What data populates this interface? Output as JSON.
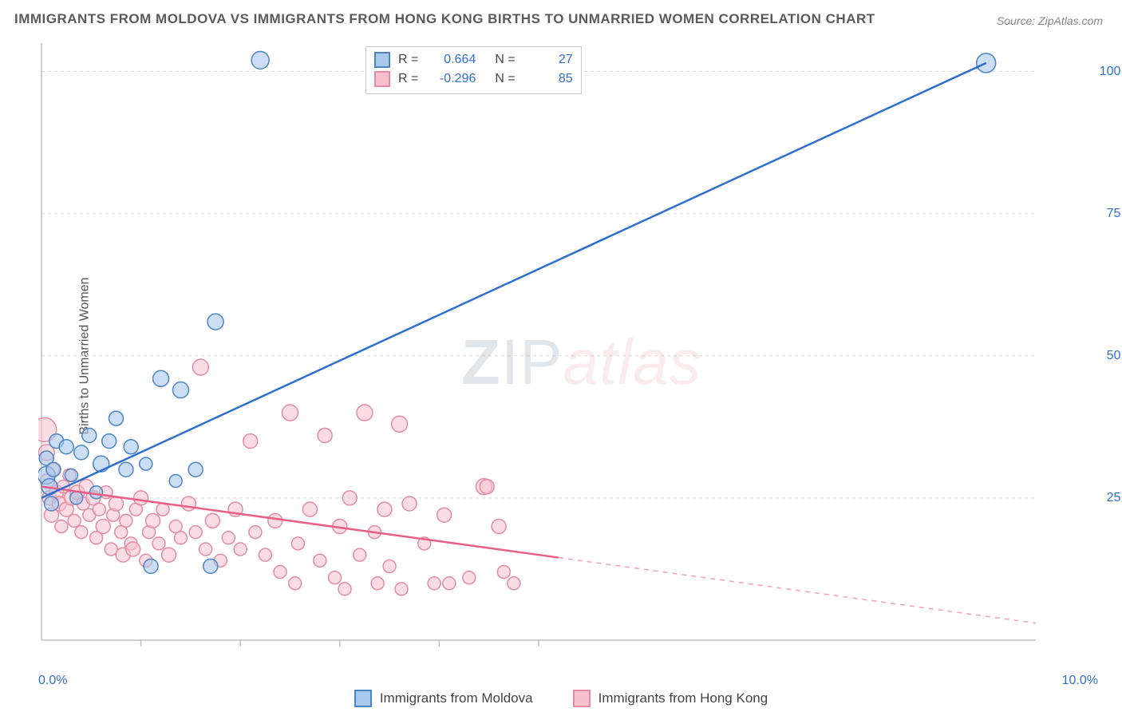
{
  "title": "IMMIGRANTS FROM MOLDOVA VS IMMIGRANTS FROM HONG KONG BIRTHS TO UNMARRIED WOMEN CORRELATION CHART",
  "source": "Source: ZipAtlas.com",
  "ylabel": "Births to Unmarried Women",
  "watermark_parts": {
    "z": "Z",
    "ip": "IP",
    "at": "atlas"
  },
  "colors": {
    "blue_fill": "#a8c8ec",
    "blue_stroke": "#4d84c4",
    "blue_line": "#2f6fd0",
    "pink_fill": "#f6c1cd",
    "pink_stroke": "#e48ba1",
    "pink_line": "#ea5f87",
    "grid": "#d9d9d9",
    "axis": "#bfbfbf",
    "tick_blue": "#2f6fd0",
    "text": "#555555"
  },
  "axes": {
    "x_min": 0.0,
    "x_max": 10.0,
    "y_min": 0.0,
    "y_max": 105.0,
    "y_ticks": [
      25.0,
      50.0,
      75.0,
      100.0
    ],
    "y_tick_labels": [
      "25.0%",
      "50.0%",
      "75.0%",
      "100.0%"
    ],
    "x_tick_min_label": "0.0%",
    "x_tick_max_label": "10.0%",
    "x_minor_ticks": [
      1.0,
      2.0,
      3.0,
      4.0,
      5.0
    ]
  },
  "stats": {
    "blue": {
      "R": "0.664",
      "N": "27"
    },
    "pink": {
      "R": "-0.296",
      "N": "85"
    }
  },
  "legend": {
    "blue": "Immigrants from Moldova",
    "pink": "Immigrants from Hong Kong"
  },
  "trend_lines": {
    "blue": {
      "x1": 0.0,
      "y1": 25.0,
      "x2": 9.5,
      "y2": 101.5,
      "solid_until_x": 9.5
    },
    "pink": {
      "x1": 0.0,
      "y1": 27.0,
      "x2": 10.0,
      "y2": 3.0,
      "solid_until_x": 5.2
    }
  },
  "series": {
    "blue": [
      {
        "x": 0.05,
        "y": 29,
        "r": 11
      },
      {
        "x": 0.05,
        "y": 32,
        "r": 9
      },
      {
        "x": 0.08,
        "y": 27,
        "r": 10
      },
      {
        "x": 0.1,
        "y": 24,
        "r": 9
      },
      {
        "x": 0.12,
        "y": 30,
        "r": 9
      },
      {
        "x": 0.15,
        "y": 35,
        "r": 9
      },
      {
        "x": 0.25,
        "y": 34,
        "r": 9
      },
      {
        "x": 0.3,
        "y": 29,
        "r": 8
      },
      {
        "x": 0.35,
        "y": 25,
        "r": 8
      },
      {
        "x": 0.4,
        "y": 33,
        "r": 9
      },
      {
        "x": 0.48,
        "y": 36,
        "r": 9
      },
      {
        "x": 0.55,
        "y": 26,
        "r": 8
      },
      {
        "x": 0.6,
        "y": 31,
        "r": 10
      },
      {
        "x": 0.68,
        "y": 35,
        "r": 9
      },
      {
        "x": 0.75,
        "y": 39,
        "r": 9
      },
      {
        "x": 0.85,
        "y": 30,
        "r": 9
      },
      {
        "x": 0.9,
        "y": 34,
        "r": 9
      },
      {
        "x": 1.05,
        "y": 31,
        "r": 8
      },
      {
        "x": 1.1,
        "y": 13,
        "r": 9
      },
      {
        "x": 1.2,
        "y": 46,
        "r": 10
      },
      {
        "x": 1.35,
        "y": 28,
        "r": 8
      },
      {
        "x": 1.4,
        "y": 44,
        "r": 10
      },
      {
        "x": 1.55,
        "y": 30,
        "r": 9
      },
      {
        "x": 1.7,
        "y": 13,
        "r": 9
      },
      {
        "x": 1.75,
        "y": 56,
        "r": 10
      },
      {
        "x": 2.2,
        "y": 102,
        "r": 11
      },
      {
        "x": 9.5,
        "y": 101.5,
        "r": 12
      }
    ],
    "pink": [
      {
        "x": 0.03,
        "y": 37,
        "r": 15
      },
      {
        "x": 0.05,
        "y": 33,
        "r": 10
      },
      {
        "x": 0.06,
        "y": 28,
        "r": 9
      },
      {
        "x": 0.08,
        "y": 25,
        "r": 9
      },
      {
        "x": 0.1,
        "y": 22,
        "r": 9
      },
      {
        "x": 0.12,
        "y": 30,
        "r": 8
      },
      {
        "x": 0.15,
        "y": 26,
        "r": 9
      },
      {
        "x": 0.18,
        "y": 24,
        "r": 9
      },
      {
        "x": 0.2,
        "y": 20,
        "r": 8
      },
      {
        "x": 0.22,
        "y": 27,
        "r": 8
      },
      {
        "x": 0.25,
        "y": 23,
        "r": 9
      },
      {
        "x": 0.28,
        "y": 29,
        "r": 8
      },
      {
        "x": 0.3,
        "y": 25,
        "r": 9
      },
      {
        "x": 0.33,
        "y": 21,
        "r": 8
      },
      {
        "x": 0.36,
        "y": 26,
        "r": 9
      },
      {
        "x": 0.4,
        "y": 19,
        "r": 8
      },
      {
        "x": 0.42,
        "y": 24,
        "r": 8
      },
      {
        "x": 0.45,
        "y": 27,
        "r": 9
      },
      {
        "x": 0.48,
        "y": 22,
        "r": 8
      },
      {
        "x": 0.52,
        "y": 25,
        "r": 9
      },
      {
        "x": 0.55,
        "y": 18,
        "r": 8
      },
      {
        "x": 0.58,
        "y": 23,
        "r": 8
      },
      {
        "x": 0.62,
        "y": 20,
        "r": 9
      },
      {
        "x": 0.65,
        "y": 26,
        "r": 8
      },
      {
        "x": 0.7,
        "y": 16,
        "r": 8
      },
      {
        "x": 0.72,
        "y": 22,
        "r": 8
      },
      {
        "x": 0.75,
        "y": 24,
        "r": 9
      },
      {
        "x": 0.8,
        "y": 19,
        "r": 8
      },
      {
        "x": 0.82,
        "y": 15,
        "r": 9
      },
      {
        "x": 0.85,
        "y": 21,
        "r": 8
      },
      {
        "x": 0.9,
        "y": 17,
        "r": 8
      },
      {
        "x": 0.92,
        "y": 16,
        "r": 9
      },
      {
        "x": 0.95,
        "y": 23,
        "r": 8
      },
      {
        "x": 1.0,
        "y": 25,
        "r": 9
      },
      {
        "x": 1.05,
        "y": 14,
        "r": 8
      },
      {
        "x": 1.08,
        "y": 19,
        "r": 8
      },
      {
        "x": 1.12,
        "y": 21,
        "r": 9
      },
      {
        "x": 1.18,
        "y": 17,
        "r": 8
      },
      {
        "x": 1.22,
        "y": 23,
        "r": 8
      },
      {
        "x": 1.28,
        "y": 15,
        "r": 9
      },
      {
        "x": 1.35,
        "y": 20,
        "r": 8
      },
      {
        "x": 1.4,
        "y": 18,
        "r": 8
      },
      {
        "x": 1.48,
        "y": 24,
        "r": 9
      },
      {
        "x": 1.55,
        "y": 19,
        "r": 8
      },
      {
        "x": 1.6,
        "y": 48,
        "r": 10
      },
      {
        "x": 1.65,
        "y": 16,
        "r": 8
      },
      {
        "x": 1.72,
        "y": 21,
        "r": 9
      },
      {
        "x": 1.8,
        "y": 14,
        "r": 8
      },
      {
        "x": 1.88,
        "y": 18,
        "r": 8
      },
      {
        "x": 1.95,
        "y": 23,
        "r": 9
      },
      {
        "x": 2.0,
        "y": 16,
        "r": 8
      },
      {
        "x": 2.1,
        "y": 35,
        "r": 9
      },
      {
        "x": 2.15,
        "y": 19,
        "r": 8
      },
      {
        "x": 2.25,
        "y": 15,
        "r": 8
      },
      {
        "x": 2.35,
        "y": 21,
        "r": 9
      },
      {
        "x": 2.4,
        "y": 12,
        "r": 8
      },
      {
        "x": 2.5,
        "y": 40,
        "r": 10
      },
      {
        "x": 2.55,
        "y": 10,
        "r": 8
      },
      {
        "x": 2.58,
        "y": 17,
        "r": 8
      },
      {
        "x": 2.7,
        "y": 23,
        "r": 9
      },
      {
        "x": 2.8,
        "y": 14,
        "r": 8
      },
      {
        "x": 2.85,
        "y": 36,
        "r": 9
      },
      {
        "x": 2.95,
        "y": 11,
        "r": 8
      },
      {
        "x": 3.0,
        "y": 20,
        "r": 9
      },
      {
        "x": 3.05,
        "y": 9,
        "r": 8
      },
      {
        "x": 3.1,
        "y": 25,
        "r": 9
      },
      {
        "x": 3.2,
        "y": 15,
        "r": 8
      },
      {
        "x": 3.25,
        "y": 40,
        "r": 10
      },
      {
        "x": 3.35,
        "y": 19,
        "r": 8
      },
      {
        "x": 3.38,
        "y": 10,
        "r": 8
      },
      {
        "x": 3.45,
        "y": 23,
        "r": 9
      },
      {
        "x": 3.5,
        "y": 13,
        "r": 8
      },
      {
        "x": 3.6,
        "y": 38,
        "r": 10
      },
      {
        "x": 3.62,
        "y": 9,
        "r": 8
      },
      {
        "x": 3.7,
        "y": 24,
        "r": 9
      },
      {
        "x": 3.85,
        "y": 17,
        "r": 8
      },
      {
        "x": 3.95,
        "y": 10,
        "r": 8
      },
      {
        "x": 4.05,
        "y": 22,
        "r": 9
      },
      {
        "x": 4.1,
        "y": 10,
        "r": 8
      },
      {
        "x": 4.3,
        "y": 11,
        "r": 8
      },
      {
        "x": 4.45,
        "y": 27,
        "r": 10
      },
      {
        "x": 4.48,
        "y": 27,
        "r": 9
      },
      {
        "x": 4.6,
        "y": 20,
        "r": 9
      },
      {
        "x": 4.65,
        "y": 12,
        "r": 8
      },
      {
        "x": 4.75,
        "y": 10,
        "r": 8
      }
    ]
  }
}
